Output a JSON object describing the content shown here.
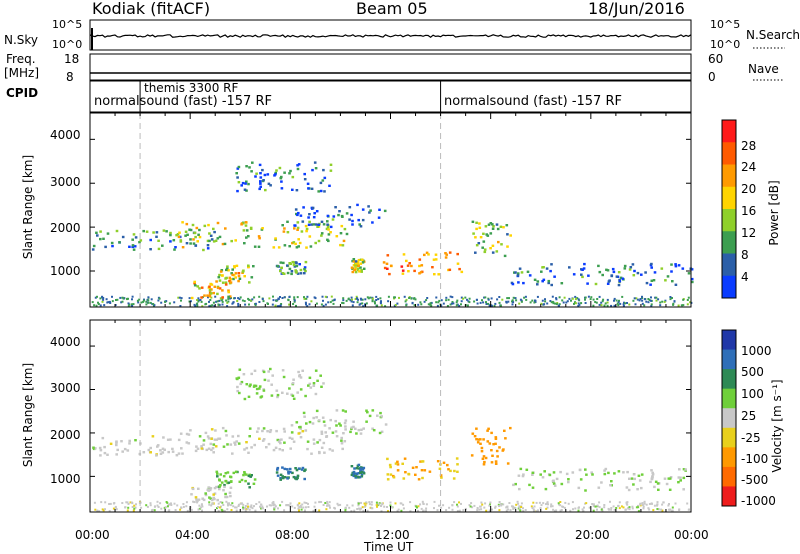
{
  "header": {
    "radar": "Kodiak (fitACF)",
    "beam": "Beam 05",
    "date": "18/Jun/2016"
  },
  "noise_panel": {
    "left_label": "N.Sky",
    "left_ticks": [
      "10^5",
      "10^0"
    ],
    "right_ticks": [
      "10^5",
      "10^0"
    ],
    "right_label": "N.Search"
  },
  "freq_panel": {
    "left_label_1": "Freq.",
    "left_label_2": "[MHz]",
    "left_ticks": [
      "18",
      "8"
    ],
    "right_ticks": [
      "60",
      "0"
    ],
    "right_label": "Nave"
  },
  "cpid_panel": {
    "label": "CPID",
    "modes": [
      {
        "text": "normalsound (fast) -157 RF",
        "start_hour": 0
      },
      {
        "text": "themis 3300 RF",
        "start_hour": 2
      },
      {
        "text": "normalsound (fast) -157 RF",
        "start_hour": 14
      }
    ]
  },
  "power_panel": {
    "ylabel": "Slant Range [km]",
    "yticks": [
      "4000",
      "3000",
      "2000",
      "1000"
    ],
    "colorbar_label": "Power [dB]",
    "colorbar_ticks": [
      "28",
      "24",
      "20",
      "16",
      "12",
      "8",
      "4"
    ],
    "colorbar_colors": [
      "#ff1a1a",
      "#ff5a00",
      "#ff9a00",
      "#ffd400",
      "#8fcf2a",
      "#3c9e50",
      "#2b5fa8",
      "#0a3cff"
    ]
  },
  "velocity_panel": {
    "ylabel": "Slant Range [km]",
    "yticks": [
      "4000",
      "3000",
      "2000",
      "1000"
    ],
    "colorbar_label": "Velocity [m s⁻¹]",
    "colorbar_ticks": [
      "1000",
      "500",
      "100",
      "25",
      "-25",
      "-100",
      "-500",
      "-1000"
    ],
    "colorbar_colors": [
      "#2038a8",
      "#2f6fb8",
      "#2e8a55",
      "#6fcf3a",
      "#c8c8c8",
      "#e8d01c",
      "#ff9900",
      "#ff6a00",
      "#ee1c1c"
    ]
  },
  "x_axis": {
    "label": "Time UT",
    "ticks": [
      "00:00",
      "04:00",
      "08:00",
      "12:00",
      "16:00",
      "20:00",
      "00:00"
    ]
  },
  "chart_data": {
    "type": "heatmap",
    "title": "Kodiak (fitACF) Beam 05 18/Jun/2016",
    "xlabel": "Time UT",
    "ylabel": "Slant Range [km]",
    "xlim_hours": [
      0,
      24
    ],
    "ylim_km": [
      180,
      4600
    ],
    "power_range_db": [
      0,
      30
    ],
    "velocity_range_ms": [
      -1000,
      1000
    ],
    "freq_mhz_approx": 10,
    "scatter_regions": [
      {
        "t_start": 0.0,
        "t_end": 5.0,
        "range_start": 1500,
        "range_end": 1950,
        "power_db": 8,
        "velocity": 0
      },
      {
        "t_start": 3.5,
        "t_end": 10.3,
        "range_start": 1550,
        "range_end": 2150,
        "power_db": 14,
        "velocity": 0
      },
      {
        "t_start": 8.0,
        "t_end": 11.8,
        "range_start": 2000,
        "range_end": 2550,
        "power_db": 6,
        "velocity": 25
      },
      {
        "t_start": 5.8,
        "t_end": 9.6,
        "range_start": 2800,
        "range_end": 3500,
        "power_db": 6,
        "velocity": 25
      },
      {
        "t_start": 5.0,
        "t_end": 6.6,
        "range_start": 750,
        "range_end": 1150,
        "power_db": 16,
        "velocity": 80
      },
      {
        "t_start": 4.0,
        "t_end": 5.6,
        "range_start": 400,
        "range_end": 800,
        "power_db": 18,
        "velocity": 0
      },
      {
        "t_start": 7.4,
        "t_end": 8.6,
        "range_start": 950,
        "range_end": 1250,
        "power_db": 8,
        "velocity": 500
      },
      {
        "t_start": 10.4,
        "t_end": 10.9,
        "range_start": 1000,
        "range_end": 1300,
        "power_db": 14,
        "velocity": 500
      },
      {
        "t_start": 11.6,
        "t_end": 14.8,
        "range_start": 950,
        "range_end": 1450,
        "power_db": 22,
        "velocity": -100
      },
      {
        "t_start": 15.2,
        "t_end": 16.8,
        "range_start": 1300,
        "range_end": 2150,
        "power_db": 12,
        "velocity": -300
      },
      {
        "t_start": 16.8,
        "t_end": 24.0,
        "range_start": 700,
        "range_end": 1200,
        "power_db": 6,
        "velocity": 25
      }
    ]
  }
}
